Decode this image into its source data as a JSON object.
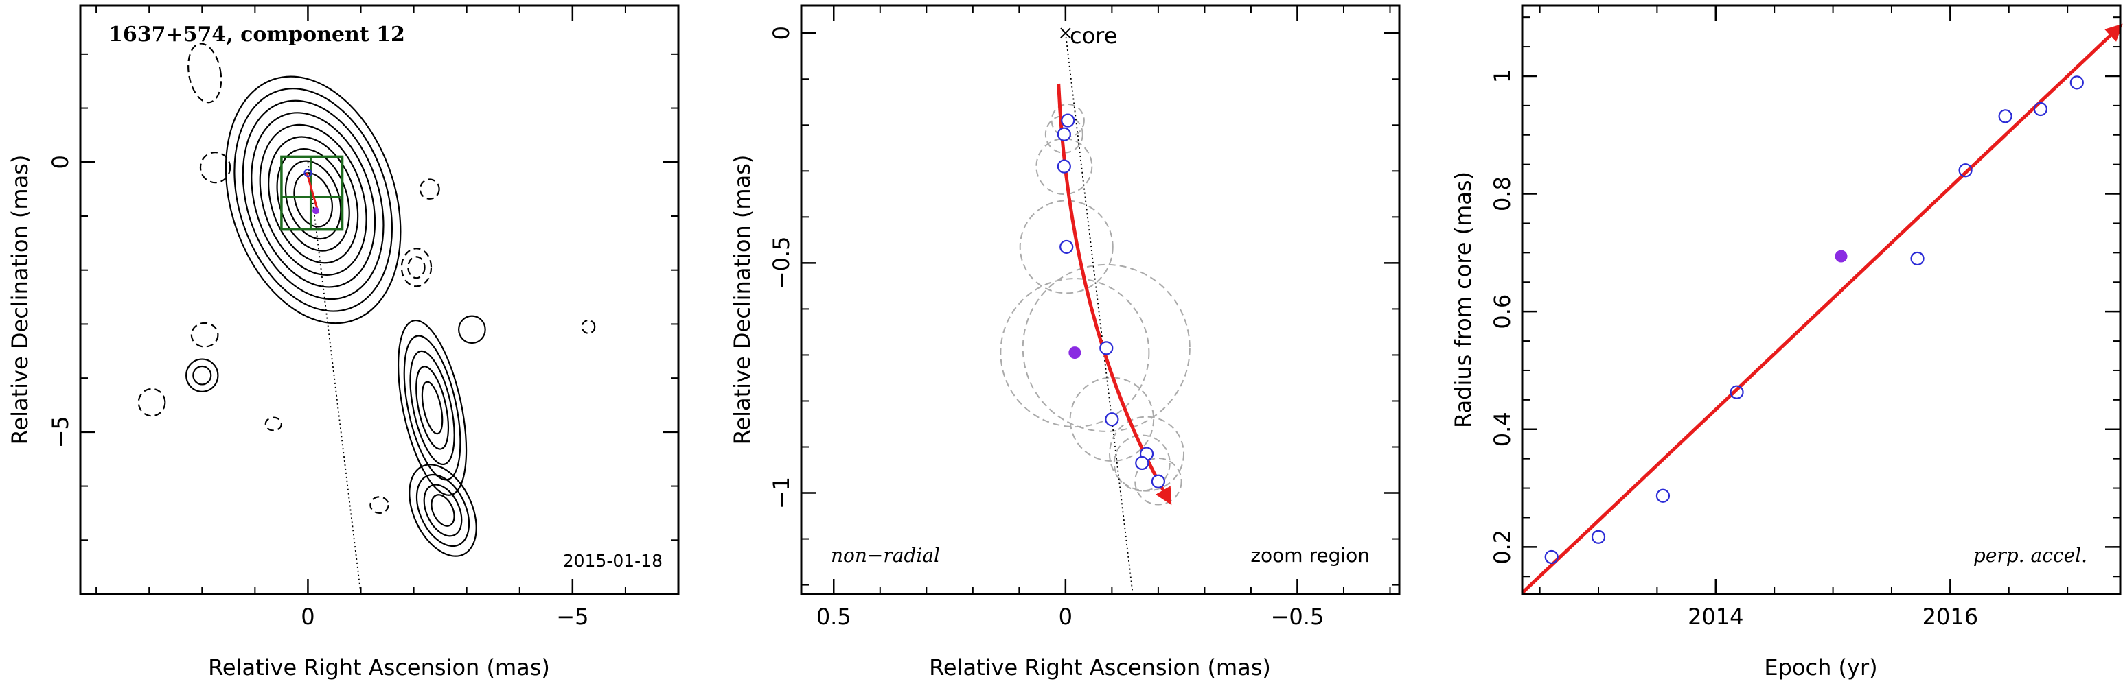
{
  "colors": {
    "axis": "#000000",
    "contour": "#000000",
    "box": "#1e6b1e",
    "fit": "#e81c1c",
    "point": "#2b2bd6",
    "highlight": "#8a2be2",
    "circle": "#aaaaaa"
  },
  "chart_data": [
    {
      "type": "contour",
      "title": "1637+574, component 12",
      "xlabel": "Relative Right Ascension (mas)",
      "ylabel": "Relative Declination (mas)",
      "xlim": [
        4.3,
        -7.0
      ],
      "ylim": [
        -8.0,
        2.9
      ],
      "xticks": [
        0,
        -5
      ],
      "yticks": [
        0,
        -5
      ],
      "date_label": "2015-01-18",
      "core": [
        0,
        0
      ],
      "direction_line": [
        [
          0.0,
          0.0
        ],
        [
          -1.0,
          -8.0
        ]
      ],
      "zoom_box": {
        "x": [
          0.5,
          -0.65
        ],
        "y": [
          0.1,
          -1.25
        ]
      }
    },
    {
      "type": "scatter",
      "xlabel": "Relative Right Ascension (mas)",
      "ylabel": "Relative Declination (mas)",
      "xlim": [
        0.57,
        -0.72
      ],
      "ylim": [
        -1.22,
        0.06
      ],
      "xticks": [
        0.5,
        0,
        -0.5
      ],
      "yticks": [
        0,
        -0.5,
        -1
      ],
      "core_label": "core",
      "left_note": "non−radial",
      "right_note": "zoom region",
      "points": [
        {
          "x": -0.005,
          "y": -0.19,
          "r": 0.035
        },
        {
          "x": 0.003,
          "y": -0.22,
          "r": 0.04
        },
        {
          "x": 0.003,
          "y": -0.29,
          "r": 0.06
        },
        {
          "x": -0.002,
          "y": -0.465,
          "r": 0.1
        },
        {
          "x": -0.088,
          "y": -0.685,
          "r": 0.18
        },
        {
          "x": -0.1,
          "y": -0.84,
          "r": 0.09
        },
        {
          "x": -0.175,
          "y": -0.915,
          "r": 0.08
        },
        {
          "x": -0.165,
          "y": -0.935,
          "r": 0.06
        },
        {
          "x": -0.2,
          "y": -0.975,
          "r": 0.05
        }
      ],
      "highlight": {
        "x": -0.02,
        "y": -0.695,
        "r": 0.16
      },
      "fit_path": [
        [
          0.015,
          -0.11
        ],
        [
          0.0,
          -0.45
        ],
        [
          -0.075,
          -0.755
        ],
        [
          -0.225,
          -1.02
        ]
      ],
      "direction_line": [
        [
          0.0,
          0.0
        ],
        [
          -0.145,
          -1.22
        ]
      ]
    },
    {
      "type": "scatter",
      "xlabel": "Epoch (yr)",
      "ylabel": "Radius from core (mas)",
      "xlim": [
        2012.35,
        2017.45
      ],
      "ylim": [
        0.12,
        1.12
      ],
      "xticks": [
        2014,
        2016
      ],
      "yticks": [
        0.2,
        0.4,
        0.6,
        0.8,
        1
      ],
      "annotation": "perp. accel.",
      "points": [
        {
          "x": 2012.6,
          "y": 0.183
        },
        {
          "x": 2013.0,
          "y": 0.217
        },
        {
          "x": 2013.55,
          "y": 0.287
        },
        {
          "x": 2014.18,
          "y": 0.463
        },
        {
          "x": 2015.72,
          "y": 0.69
        },
        {
          "x": 2016.13,
          "y": 0.84
        },
        {
          "x": 2016.47,
          "y": 0.932
        },
        {
          "x": 2016.77,
          "y": 0.944
        },
        {
          "x": 2017.08,
          "y": 0.989
        }
      ],
      "highlight": {
        "x": 2015.07,
        "y": 0.694
      },
      "fit_line": [
        [
          2012.35,
          0.122
        ],
        [
          2017.45,
          1.085
        ]
      ]
    }
  ]
}
